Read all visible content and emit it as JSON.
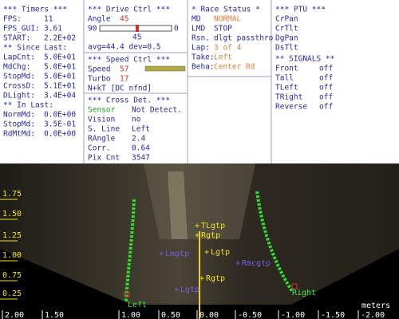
{
  "timers": {
    "title": "*** Timers ***",
    "lines": [
      {
        "label": "FPS:",
        "value": "11"
      },
      {
        "label": "FPS_GUI:",
        "value": "3.61"
      },
      {
        "label": "START:",
        "value": "2.2E+02"
      },
      {
        "label": "** Since Last:"
      },
      {
        "label": "LapCnt:",
        "value": "5.0E+01"
      },
      {
        "label": "MdChg:",
        "value": "5.0E+01"
      },
      {
        "label": "StopMd:",
        "value": "5.0E+01"
      },
      {
        "label": "CrossD:",
        "value": "5.1E+01"
      },
      {
        "label": "DLight:",
        "value": "3.4E+04"
      },
      {
        "label": "** In Last:"
      },
      {
        "label": "NormMd:",
        "value": "0.0E+00"
      },
      {
        "label": "StopMd:",
        "value": "3.5E-01"
      },
      {
        "label": "RdMtMd:",
        "value": "0.0E+00"
      }
    ]
  },
  "drive_ctrl": {
    "title": "*** Drive Ctrl ***",
    "angle_label": "Angle",
    "angle_value": "45",
    "slider_min": "90",
    "slider_max": "0",
    "slider_value": "45",
    "stats": "avg=44.4 dev=0.5"
  },
  "speed_ctrl": {
    "title": "*** Speed Ctrl ***",
    "lines": [
      {
        "label": "Speed",
        "value": "57",
        "color": "#d03030"
      },
      {
        "label": "Turbo",
        "value": "17",
        "color": "#d03030"
      },
      {
        "label": "N+kT [DC nfnd]"
      }
    ]
  },
  "cross_det": {
    "title": "*** Cross Det. ***",
    "lines": [
      {
        "label": "Sensor",
        "value": "Not Detect.",
        "label_color": "#20a020"
      },
      {
        "label": "Vision",
        "value": "no"
      },
      {
        "label": "S. Line",
        "value": "Left"
      },
      {
        "label": "RAngle",
        "value": "2.4"
      },
      {
        "label": "Corr.",
        "value": "0.64"
      },
      {
        "label": "Pix Cnt",
        "value": "3547"
      }
    ]
  },
  "race_status": {
    "title": "* Race Status *",
    "lines": [
      {
        "label": "MD",
        "value": "NORMAL",
        "color": "#e08040"
      },
      {
        "label": "LMD",
        "value": "STOP"
      },
      {
        "label": "Rsn.",
        "value": "dlgt passthro"
      },
      {
        "label": "Lap:",
        "value": "3 of 4",
        "color": "#e08040"
      },
      {
        "label": "Take:",
        "value": "Left",
        "color": "#e08040"
      },
      {
        "label": "Beha:",
        "value": "Center Rd",
        "color": "#e08040"
      }
    ]
  },
  "ptu": {
    "title": "*** PTU ***",
    "lines": [
      {
        "label": "CrPan"
      },
      {
        "label": "CrTlt"
      },
      {
        "label": "DgPan"
      },
      {
        "label": "DsTlt"
      }
    ]
  },
  "signals": {
    "title": "** SIGNALS **",
    "lines": [
      {
        "label": "Front",
        "value": "off"
      },
      {
        "label": "Tall",
        "value": "off"
      },
      {
        "label": "TLeft",
        "value": "off"
      },
      {
        "label": "TRight",
        "value": "off"
      },
      {
        "label": "Reverse",
        "value": "off"
      }
    ]
  },
  "camera": {
    "y_labels": [
      "1.75",
      "1.50",
      "1.25",
      "1.00",
      "0.75",
      "0.25"
    ],
    "x_labels": [
      "2.00",
      "1.50",
      "1.00",
      "0.50",
      "0.00",
      "-0.50",
      "-1.00",
      "-1.50",
      "-2.00"
    ],
    "unit": "meters",
    "left_label": "Left",
    "right_label": "Right",
    "markers": [
      "TLgtp",
      "Rgtp",
      "Lmgtp",
      "Rmcgtp",
      "Lgtp",
      "Rgtp",
      "Lgtp"
    ]
  }
}
